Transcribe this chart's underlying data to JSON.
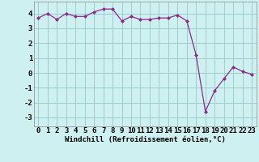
{
  "x": [
    0,
    1,
    2,
    3,
    4,
    5,
    6,
    7,
    8,
    9,
    10,
    11,
    12,
    13,
    14,
    15,
    16,
    17,
    18,
    19,
    20,
    21,
    22,
    23
  ],
  "y": [
    3.7,
    4.0,
    3.6,
    4.0,
    3.8,
    3.8,
    4.1,
    4.3,
    4.3,
    3.5,
    3.8,
    3.6,
    3.6,
    3.7,
    3.7,
    3.9,
    3.5,
    1.2,
    -2.6,
    -1.2,
    -0.4,
    0.4,
    0.1,
    -0.1
  ],
  "line_color": "#8B2B8B",
  "marker": "D",
  "marker_size": 2.0,
  "line_width": 0.9,
  "bg_color": "#cff0f0",
  "grid_color": "#a0cccc",
  "xlabel": "Windchill (Refroidissement éolien,°C)",
  "xlabel_fontsize": 6.5,
  "tick_fontsize": 6.5,
  "ylim": [
    -3.6,
    4.8
  ],
  "yticks": [
    -3,
    -2,
    -1,
    0,
    1,
    2,
    3,
    4
  ],
  "xticks": [
    0,
    1,
    2,
    3,
    4,
    5,
    6,
    7,
    8,
    9,
    10,
    11,
    12,
    13,
    14,
    15,
    16,
    17,
    18,
    19,
    20,
    21,
    22,
    23
  ]
}
